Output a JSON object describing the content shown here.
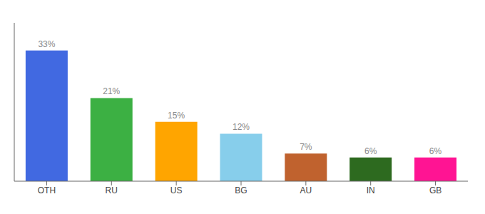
{
  "chart_data": {
    "type": "bar",
    "categories": [
      "OTH",
      "RU",
      "US",
      "BG",
      "AU",
      "IN",
      "GB"
    ],
    "values": [
      33,
      21,
      15,
      12,
      7,
      6,
      6
    ],
    "value_labels": [
      "33%",
      "21%",
      "15%",
      "12%",
      "7%",
      "6%",
      "6%"
    ],
    "colors": [
      "#4169e1",
      "#3cb043",
      "#ffa500",
      "#87ceeb",
      "#c0622e",
      "#2d6a1f",
      "#ff1493"
    ],
    "ylim": [
      0,
      40
    ],
    "data_labels": true,
    "tick_labels": "x",
    "grid": false
  }
}
